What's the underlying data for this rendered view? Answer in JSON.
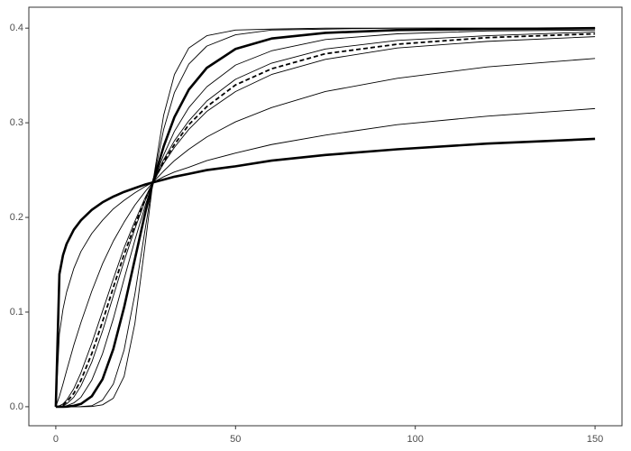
{
  "chart_data": {
    "type": "line",
    "x": [
      0,
      1,
      2,
      3,
      5,
      7,
      10,
      13,
      16,
      19,
      22,
      25,
      27,
      30,
      33,
      37,
      42,
      50,
      60,
      75,
      95,
      120,
      150
    ],
    "series": [
      {
        "color": "#000000",
        "linestyle": "thick",
        "values": [
          0,
          0.14,
          0.16,
          0.172,
          0.187,
          0.197,
          0.208,
          0.216,
          0.222,
          0.227,
          0.231,
          0.235,
          0.237,
          0.24,
          0.243,
          0.246,
          0.25,
          0.254,
          0.26,
          0.266,
          0.272,
          0.278,
          0.283
        ]
      },
      {
        "color": "#000000",
        "linestyle": "solid",
        "values": [
          0,
          0.077,
          0.103,
          0.121,
          0.146,
          0.164,
          0.183,
          0.197,
          0.209,
          0.218,
          0.226,
          0.233,
          0.237,
          0.243,
          0.248,
          0.253,
          0.26,
          0.268,
          0.277,
          0.287,
          0.298,
          0.307,
          0.315
        ]
      },
      {
        "color": "#000000",
        "linestyle": "solid",
        "values": [
          0,
          0.011,
          0.024,
          0.038,
          0.065,
          0.089,
          0.122,
          0.151,
          0.175,
          0.195,
          0.213,
          0.228,
          0.237,
          0.249,
          0.26,
          0.272,
          0.285,
          0.301,
          0.316,
          0.333,
          0.347,
          0.359,
          0.368
        ]
      },
      {
        "color": "#000000",
        "linestyle": "solid",
        "values": [
          0,
          0.001,
          0.003,
          0.007,
          0.019,
          0.036,
          0.067,
          0.101,
          0.135,
          0.168,
          0.196,
          0.222,
          0.237,
          0.257,
          0.274,
          0.293,
          0.312,
          0.333,
          0.351,
          0.367,
          0.379,
          0.386,
          0.391
        ]
      },
      {
        "color": "#000000",
        "linestyle": "dashed",
        "values": [
          0,
          0.0004,
          0.002,
          0.005,
          0.014,
          0.028,
          0.056,
          0.09,
          0.126,
          0.161,
          0.192,
          0.22,
          0.237,
          0.259,
          0.277,
          0.298,
          0.317,
          0.34,
          0.357,
          0.373,
          0.383,
          0.39,
          0.394
        ]
      },
      {
        "color": "#000000",
        "linestyle": "solid",
        "values": [
          0,
          0.0002,
          0.001,
          0.003,
          0.01,
          0.022,
          0.047,
          0.08,
          0.117,
          0.154,
          0.188,
          0.219,
          0.237,
          0.261,
          0.281,
          0.302,
          0.323,
          0.346,
          0.363,
          0.378,
          0.387,
          0.392,
          0.396
        ]
      },
      {
        "color": "#000000",
        "linestyle": "solid",
        "values": [
          0,
          0,
          0.0002,
          0.001,
          0.004,
          0.01,
          0.028,
          0.056,
          0.093,
          0.135,
          0.176,
          0.214,
          0.237,
          0.266,
          0.291,
          0.316,
          0.338,
          0.361,
          0.376,
          0.388,
          0.394,
          0.397,
          0.398
        ]
      },
      {
        "color": "#000000",
        "linestyle": "thick",
        "values": [
          0,
          0,
          0,
          0.0001,
          0.001,
          0.003,
          0.011,
          0.029,
          0.061,
          0.105,
          0.156,
          0.207,
          0.237,
          0.275,
          0.306,
          0.335,
          0.358,
          0.378,
          0.389,
          0.395,
          0.398,
          0.399,
          0.4
        ]
      },
      {
        "color": "#000000",
        "linestyle": "solid",
        "values": [
          0,
          0,
          0,
          0,
          0,
          0.0002,
          0.001,
          0.007,
          0.024,
          0.06,
          0.119,
          0.191,
          0.237,
          0.293,
          0.332,
          0.362,
          0.381,
          0.393,
          0.398,
          0.399,
          0.4,
          0.4,
          0.4
        ]
      },
      {
        "color": "#000000",
        "linestyle": "solid",
        "values": [
          0,
          0,
          0,
          0,
          0,
          0,
          0.0002,
          0.002,
          0.009,
          0.032,
          0.088,
          0.176,
          0.237,
          0.308,
          0.351,
          0.379,
          0.392,
          0.398,
          0.399,
          0.4,
          0.4,
          0.4,
          0.4
        ]
      }
    ],
    "xlim": [
      -7.5,
      157.5
    ],
    "xticks": [
      0,
      50,
      100,
      150
    ],
    "ylim": [
      -0.0201,
      0.4221
    ],
    "yticks": [
      {
        "value": 0,
        "label": "0.0"
      },
      0.1,
      0.2,
      0.3,
      0.4
    ],
    "grid": false
  }
}
